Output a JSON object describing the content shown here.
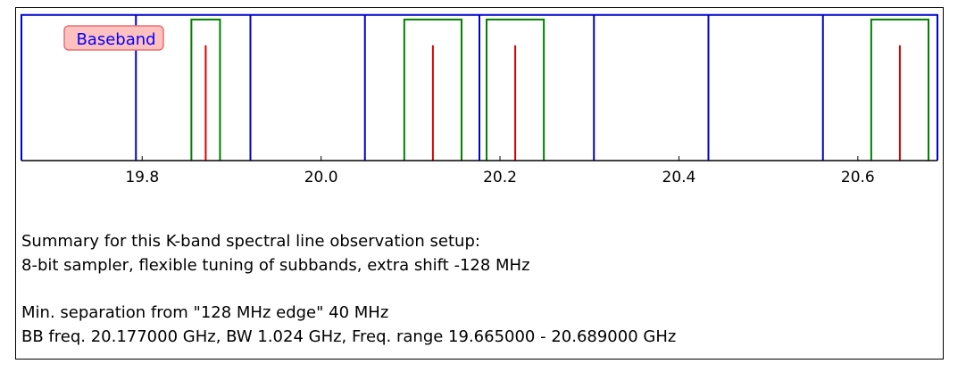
{
  "chart_data": {
    "type": "bar",
    "xlim": [
      19.665,
      20.689
    ],
    "ylim": [
      0,
      1
    ],
    "grid": false,
    "xticks": [
      19.8,
      20.0,
      20.2,
      20.4,
      20.6
    ],
    "xtick_labels": [
      "19.8",
      "20.0",
      "20.2",
      "20.4",
      "20.6"
    ],
    "annotation": "Baseband",
    "baseband": {
      "start": 19.665,
      "end": 20.689,
      "height": 0.96
    },
    "subband_edges": [
      19.793,
      19.921,
      20.049,
      20.177,
      20.305,
      20.433,
      20.561
    ],
    "spectral_windows": [
      {
        "start": 19.855,
        "end": 19.887,
        "height": 0.93
      },
      {
        "start": 20.093,
        "end": 20.157,
        "height": 0.93
      },
      {
        "start": 20.185,
        "end": 20.249,
        "height": 0.93
      },
      {
        "start": 20.615,
        "end": 20.679,
        "height": 0.93
      }
    ],
    "lines": [
      {
        "freq": 19.871,
        "height": 0.76
      },
      {
        "freq": 20.125,
        "height": 0.76
      },
      {
        "freq": 20.217,
        "height": 0.76
      },
      {
        "freq": 20.647,
        "height": 0.76
      }
    ],
    "colors": {
      "baseband": "#0000cc",
      "window": "#007f00",
      "line": "#dd0000",
      "axis": "#000000",
      "annotation_text": "#0000ff",
      "annotation_fill": "#ffc0c0",
      "annotation_border": "#e87070"
    }
  },
  "summary": {
    "line1": "Summary for this K-band spectral line observation setup:",
    "line2": "8-bit sampler, flexible tuning of subbands, extra shift -128 MHz",
    "line3": "Min. separation from \"128 MHz edge\" 40 MHz",
    "line4": "BB freq. 20.177000 GHz, BW 1.024 GHz, Freq. range 19.665000 - 20.689000 GHz"
  }
}
